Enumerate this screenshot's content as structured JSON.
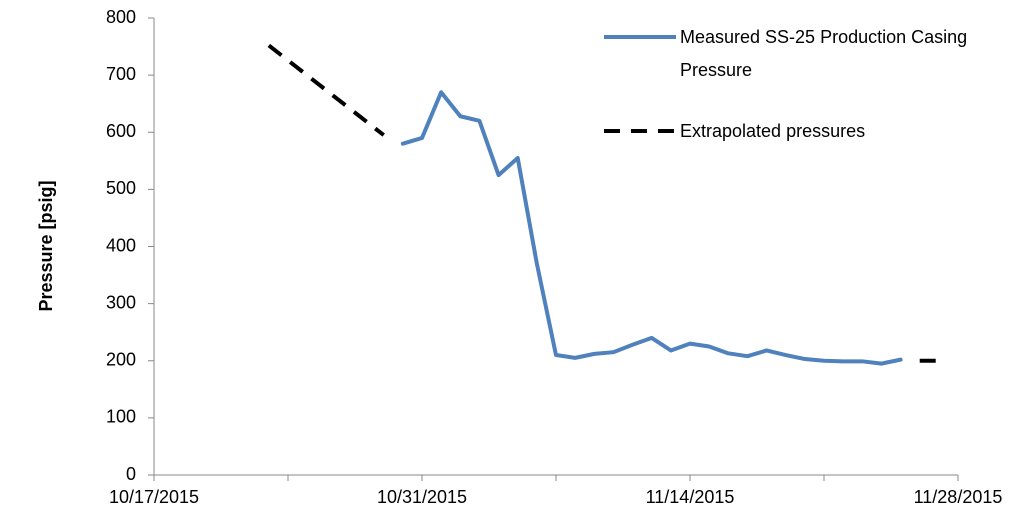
{
  "chart_data": {
    "type": "line",
    "y_label": "Pressure [psig]",
    "xlim": [
      "10/17/2015",
      "11/28/2015"
    ],
    "xticks": [
      "10/17/2015",
      "10/31/2015",
      "11/14/2015",
      "11/28/2015"
    ],
    "ylim": [
      0,
      800
    ],
    "yticks": [
      0,
      100,
      200,
      300,
      400,
      500,
      600,
      700,
      800
    ],
    "grid": false,
    "legend": "upper right",
    "series": [
      {
        "name": "Measured SS-25 Production Casing Pressure",
        "color": "#4f81bd",
        "dashed": false,
        "x": [
          "10/30/2015",
          "10/31/2015",
          "11/1/2015",
          "11/2/2015",
          "11/3/2015",
          "11/4/2015",
          "11/5/2015",
          "11/6/2015",
          "11/7/2015",
          "11/8/2015",
          "11/9/2015",
          "11/10/2015",
          "11/11/2015",
          "11/12/2015",
          "11/13/2015",
          "11/14/2015",
          "11/15/2015",
          "11/16/2015",
          "11/17/2015",
          "11/18/2015",
          "11/19/2015",
          "11/20/2015",
          "11/21/2015",
          "11/22/2015",
          "11/23/2015",
          "11/24/2015",
          "11/25/2015"
        ],
        "values": [
          580,
          590,
          670,
          628,
          620,
          525,
          555,
          370,
          210,
          205,
          212,
          215,
          228,
          240,
          218,
          230,
          225,
          213,
          208,
          218,
          210,
          203,
          200,
          199,
          199,
          195,
          202
        ]
      },
      {
        "name": "Extrapolated pressures",
        "color": "#000000",
        "dashed": true,
        "x": [
          "10/23/2015",
          "10/29/2015",
          null,
          "11/26/2015",
          "11/27/2015"
        ],
        "values": [
          752,
          595,
          null,
          200,
          200
        ]
      }
    ]
  }
}
